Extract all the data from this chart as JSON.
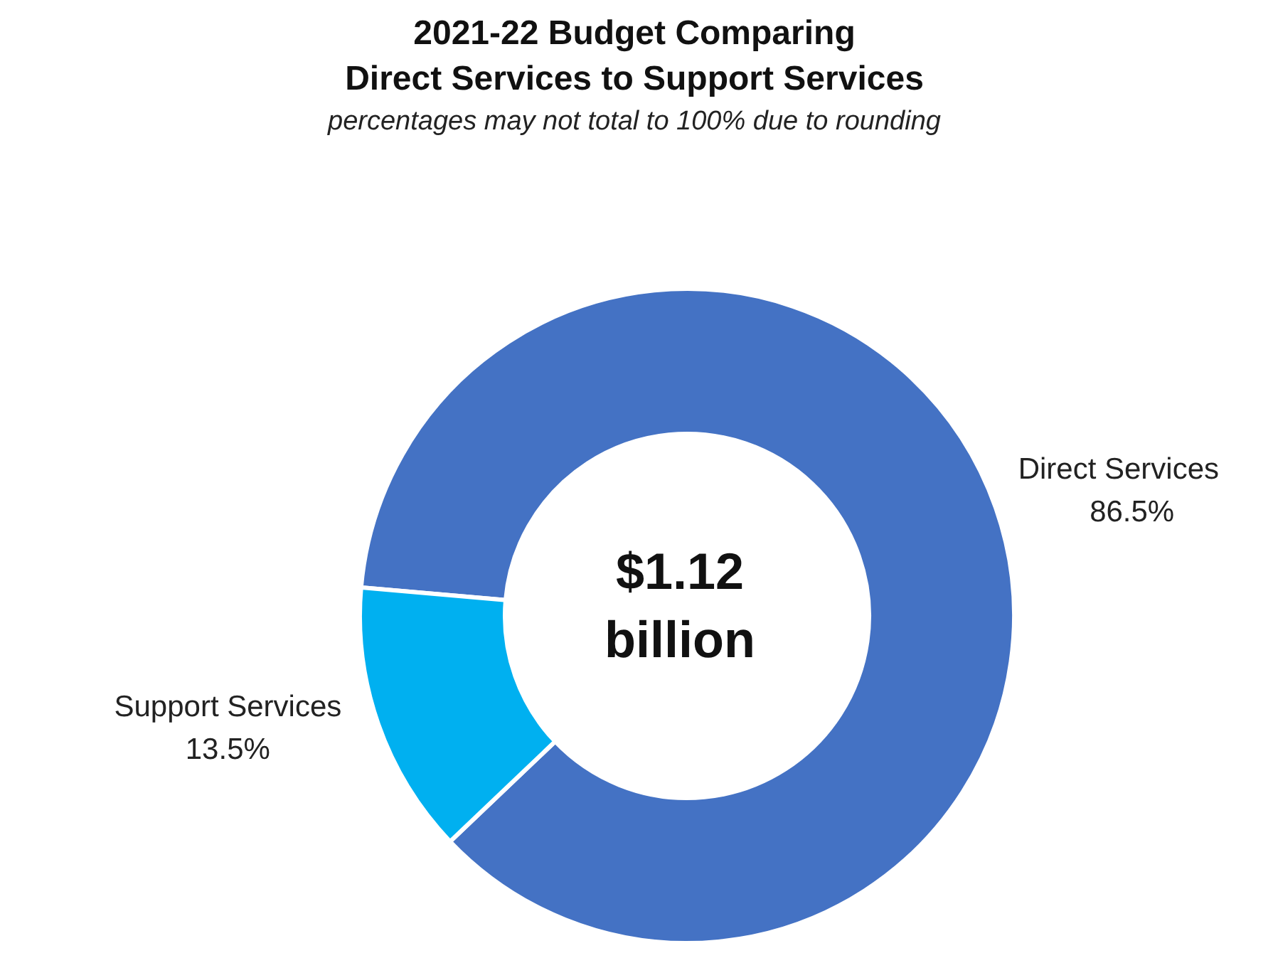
{
  "chart_data": {
    "type": "donut",
    "title": "2021-22 Budget Comparing\nDirect Services to Support Services",
    "subtitle": "percentages may not total to 100% due to rounding",
    "categories": [
      "Direct Services",
      "Support Services"
    ],
    "values": [
      86.5,
      13.5
    ],
    "value_labels": [
      "86.5%",
      "13.5%"
    ],
    "colors": [
      "#4472c4",
      "#00b0f0"
    ],
    "annotations": [
      "$1.12\nbillion"
    ],
    "legend": false
  }
}
